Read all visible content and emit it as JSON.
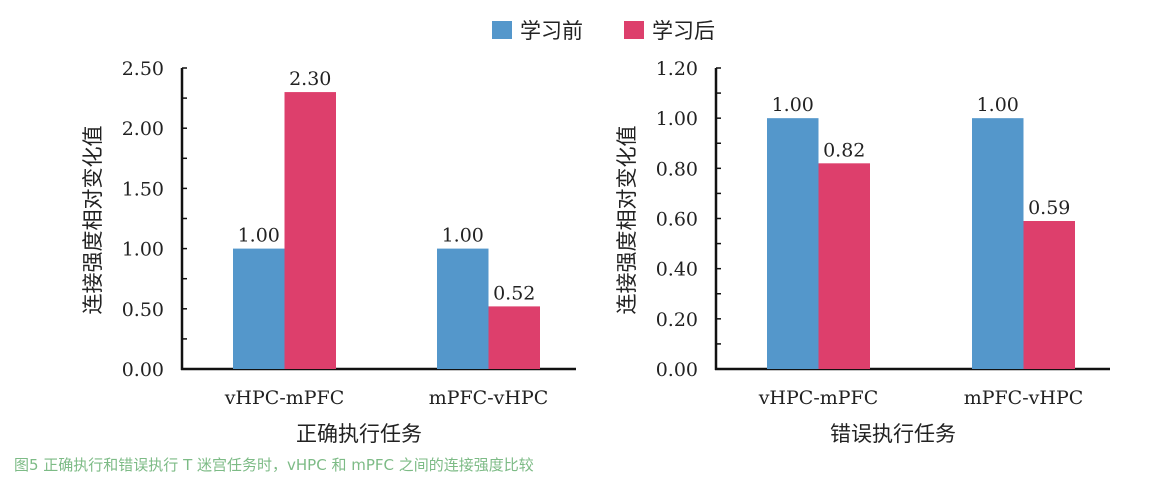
{
  "legend": [
    {
      "name": "学习前",
      "color": "#5497cb"
    },
    {
      "name": "学习后",
      "color": "#dd3f6c"
    }
  ],
  "caption": "图5 正确执行和错误执行 T 迷宫任务时，vHPC 和 mPFC 之间的连接强度比较",
  "chart_data": [
    {
      "type": "bar",
      "title": "",
      "xlabel": "正确执行任务",
      "ylabel": "连接强度相对变化值",
      "categories": [
        "vHPC-mPFC",
        "mPFC-vHPC"
      ],
      "series": [
        {
          "name": "学习前",
          "values": [
            1.0,
            1.0
          ]
        },
        {
          "name": "学习后",
          "values": [
            2.3,
            0.52
          ]
        }
      ],
      "data_labels": [
        [
          "1.00",
          "1.00"
        ],
        [
          "2.30",
          "0.52"
        ]
      ],
      "ylim": [
        0,
        2.5
      ],
      "yticks": [
        "0.00",
        "0.50",
        "1.00",
        "1.50",
        "2.00",
        "2.50"
      ],
      "grid": false
    },
    {
      "type": "bar",
      "title": "",
      "xlabel": "错误执行任务",
      "ylabel": "连接强度相对变化值",
      "categories": [
        "vHPC-mPFC",
        "mPFC-vHPC"
      ],
      "series": [
        {
          "name": "学习前",
          "values": [
            1.0,
            1.0
          ]
        },
        {
          "name": "学习后",
          "values": [
            0.82,
            0.59
          ]
        }
      ],
      "data_labels": [
        [
          "1.00",
          "1.00"
        ],
        [
          "0.82",
          "0.59"
        ]
      ],
      "ylim": [
        0,
        1.2
      ],
      "yticks": [
        "0.00",
        "0.20",
        "0.40",
        "0.60",
        "0.80",
        "1.00",
        "1.20"
      ],
      "grid": false
    }
  ]
}
